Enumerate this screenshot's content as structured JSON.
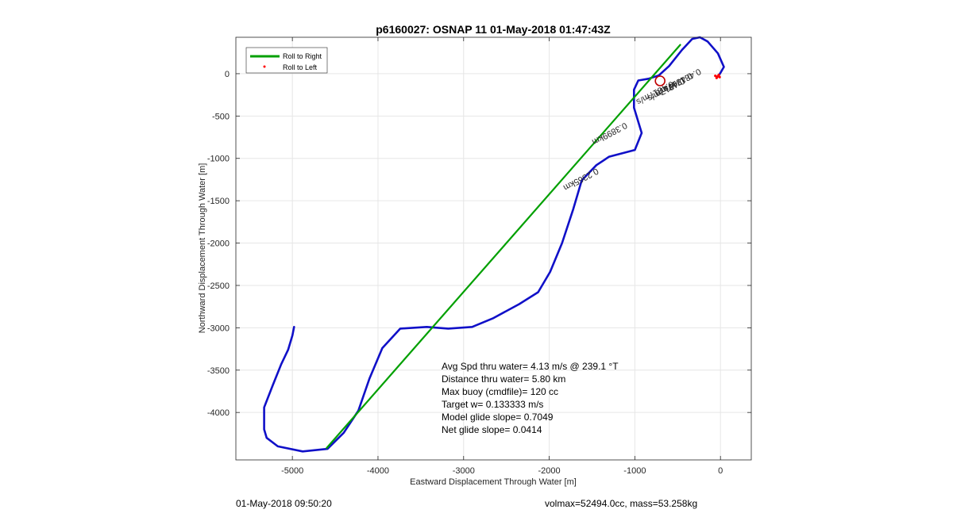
{
  "chart_data": {
    "type": "line",
    "title": "p6160027: OSNAP 11 01-May-2018 01:47:43Z",
    "xlabel": "Eastward Displacement Through Water [m]",
    "ylabel": "Northward Displacement Through Water [m]",
    "xlim": [
      -5660,
      360
    ],
    "ylim": [
      -4560,
      430
    ],
    "xticks": [
      -5000,
      -4000,
      -3000,
      -2000,
      -1000,
      0
    ],
    "yticks": [
      0,
      -500,
      -1000,
      -1500,
      -2000,
      -2500,
      -3000,
      -3500,
      -4000
    ],
    "grid": true,
    "legend": {
      "placement": "top-left",
      "entries": [
        {
          "label": "Roll to Right",
          "color": "#00a000",
          "marker": "line"
        },
        {
          "label": "Roll to Left",
          "color": "#ff0000",
          "marker": "dot"
        }
      ]
    },
    "series": [
      {
        "color": "#1010c8",
        "x": [
          -4980,
          -5000,
          -5050,
          -5130,
          -5230,
          -5330,
          -5330,
          -5300,
          -5170,
          -4880,
          -4590,
          -4400,
          -4230,
          -4100,
          -3950,
          -3740,
          -3430,
          -3180,
          -2900,
          -2660,
          -2350,
          -2130,
          -1990,
          -1850,
          -1720,
          -1620,
          -1450,
          -1300,
          -1000,
          -920,
          -1010,
          -1010,
          -960,
          -840,
          -720,
          -600,
          -450,
          -330,
          -240,
          -150,
          -30,
          40,
          0,
          -20,
          -40
        ],
        "y": [
          -2990,
          -3090,
          -3260,
          -3430,
          -3680,
          -3940,
          -4200,
          -4300,
          -4400,
          -4460,
          -4430,
          -4240,
          -3980,
          -3600,
          -3240,
          -3010,
          -2990,
          -3010,
          -2990,
          -2890,
          -2720,
          -2580,
          -2340,
          -2000,
          -1600,
          -1260,
          -1080,
          -980,
          -900,
          -700,
          -400,
          -190,
          -80,
          -60,
          -20,
          90,
          280,
          410,
          430,
          380,
          240,
          80,
          10,
          -20,
          -40
        ]
      },
      {
        "name": "Roll to Right",
        "color": "#00a000",
        "x": [
          -4600,
          -470
        ],
        "y": [
          -4420,
          340
        ]
      },
      {
        "name": "Roll to Left",
        "color": "#ff0000",
        "x": [
          -30,
          -10,
          -20,
          -45,
          -60
        ],
        "y": [
          -30,
          -40,
          -15,
          -50,
          -25
        ]
      }
    ],
    "markers": [
      {
        "shape": "circle",
        "color": "#c00000",
        "x": -705,
        "y": -85
      }
    ],
    "annotations": [
      "Avg Spd thru water=  4.13 m/s @ 239.1 °T",
      "Distance thru water=  5.80 km",
      "Max buoy (cmdfile)= 120 cc",
      "Target w= 0.133333 m/s",
      "Model glide slope= 0.7049",
      "Net glide slope= 0.0414"
    ],
    "track_labels": [
      {
        "text": "0.2365km",
        "x": -1645,
        "y": -1220,
        "angle": -28
      },
      {
        "text": "0.3899km",
        "x": -1310,
        "y": -680,
        "angle": -28
      },
      {
        "text": "0.4817m/s",
        "x": -780,
        "y": -200,
        "angle": -28
      },
      {
        "text": "0.4817m/s",
        "x": -650,
        "y": -160,
        "angle": -28
      },
      {
        "text": "0.4817m/s",
        "x": -560,
        "y": -100,
        "angle": -28
      },
      {
        "text": "0.4817m/s",
        "x": -460,
        "y": -50,
        "angle": -28
      }
    ]
  },
  "footer": {
    "left": "01-May-2018 09:50:20",
    "right": "volmax=52494.0cc, mass=53.258kg"
  }
}
